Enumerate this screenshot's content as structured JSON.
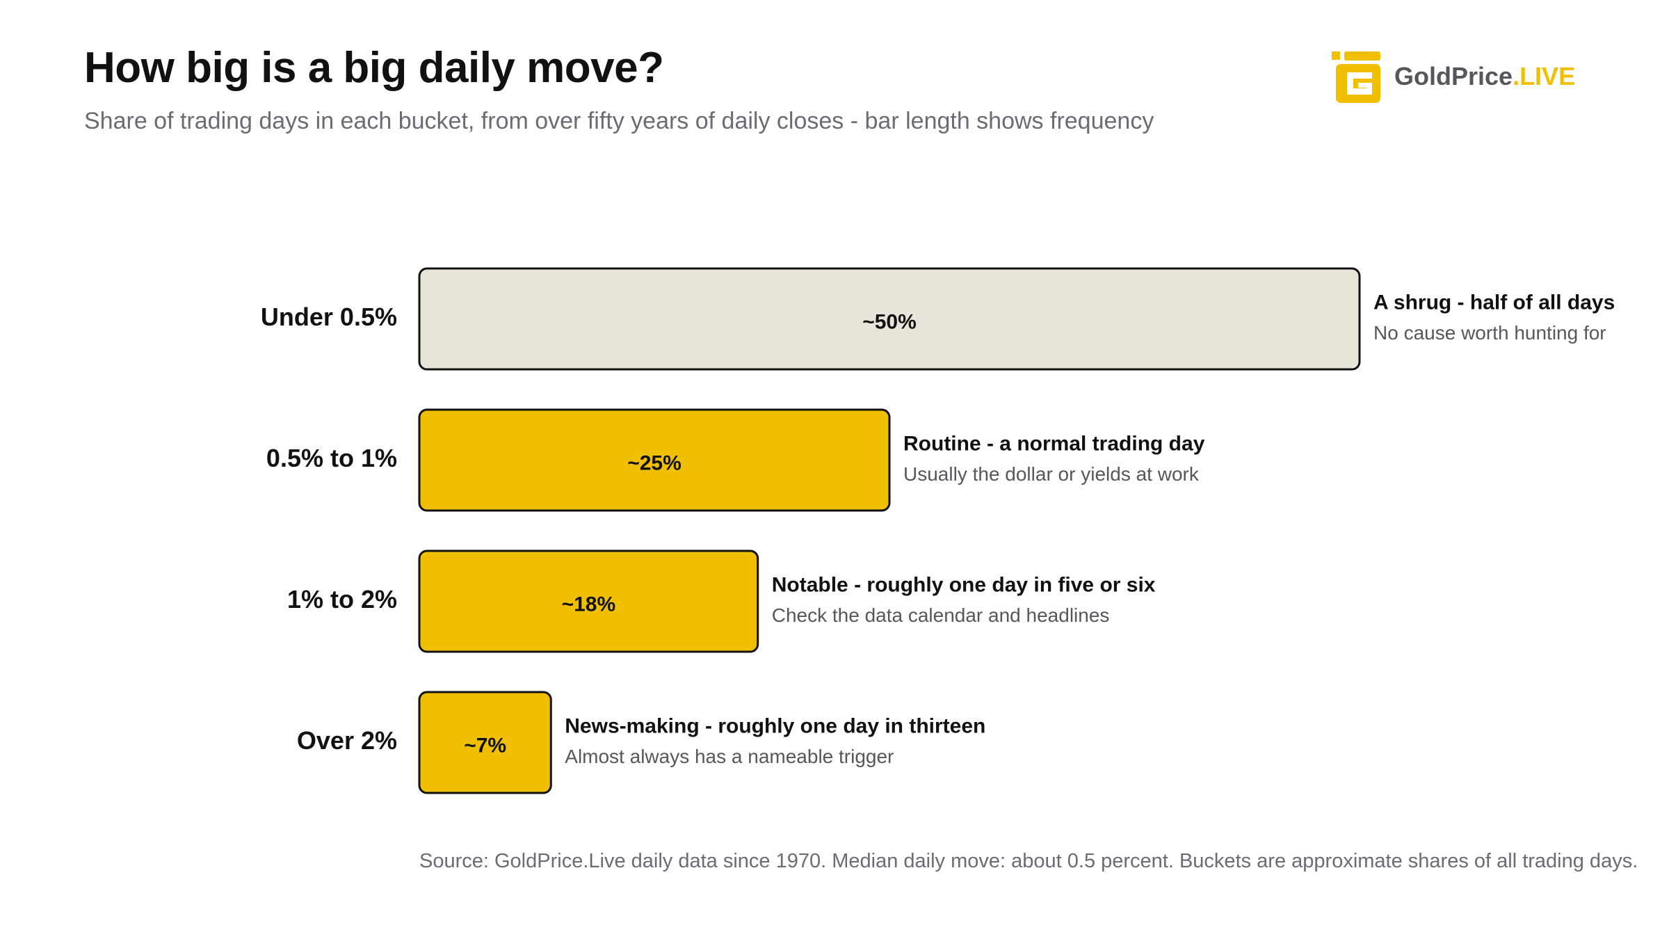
{
  "header": {
    "title": "How big is a big daily move?",
    "subtitle": "Share of trading days in each bucket, from over fifty years of daily closes - bar length shows frequency"
  },
  "logo": {
    "brand_main": "GoldPrice",
    "brand_accent": ".LIVE",
    "icon": "goldprice-logo-icon"
  },
  "chart_data": {
    "type": "bar",
    "orientation": "horizontal",
    "categories": [
      "Under 0.5%",
      "0.5% to 1%",
      "1% to 2%",
      "Over 2%"
    ],
    "values": [
      50,
      25,
      18,
      7
    ],
    "value_labels": [
      "~50%",
      "~25%",
      "~18%",
      "~7%"
    ],
    "annotations": [
      {
        "headline": "A shrug - half of all days",
        "detail": "No cause worth hunting for"
      },
      {
        "headline": "Routine - a normal trading day",
        "detail": "Usually the dollar or yields at work"
      },
      {
        "headline": "Notable - roughly one day in five or six",
        "detail": "Check the data calendar and headlines"
      },
      {
        "headline": "News-making - roughly one day in thirteen",
        "detail": "Almost always has a nameable trigger"
      }
    ],
    "bar_colors": [
      "#e8e4da",
      "#efbf00",
      "#efbf00",
      "#efbf00"
    ],
    "xlim": [
      0,
      50
    ],
    "grid": false,
    "legend": "none"
  },
  "colors": {
    "accent": "#efbf00",
    "neutral_bar": "#e8e4da",
    "outline": "#111111",
    "muted_text": "#6b6b73"
  },
  "footer": {
    "source": "Source: GoldPrice.Live daily data since 1970. Median daily move: about 0.5 percent. Buckets are approximate shares of all trading days."
  }
}
